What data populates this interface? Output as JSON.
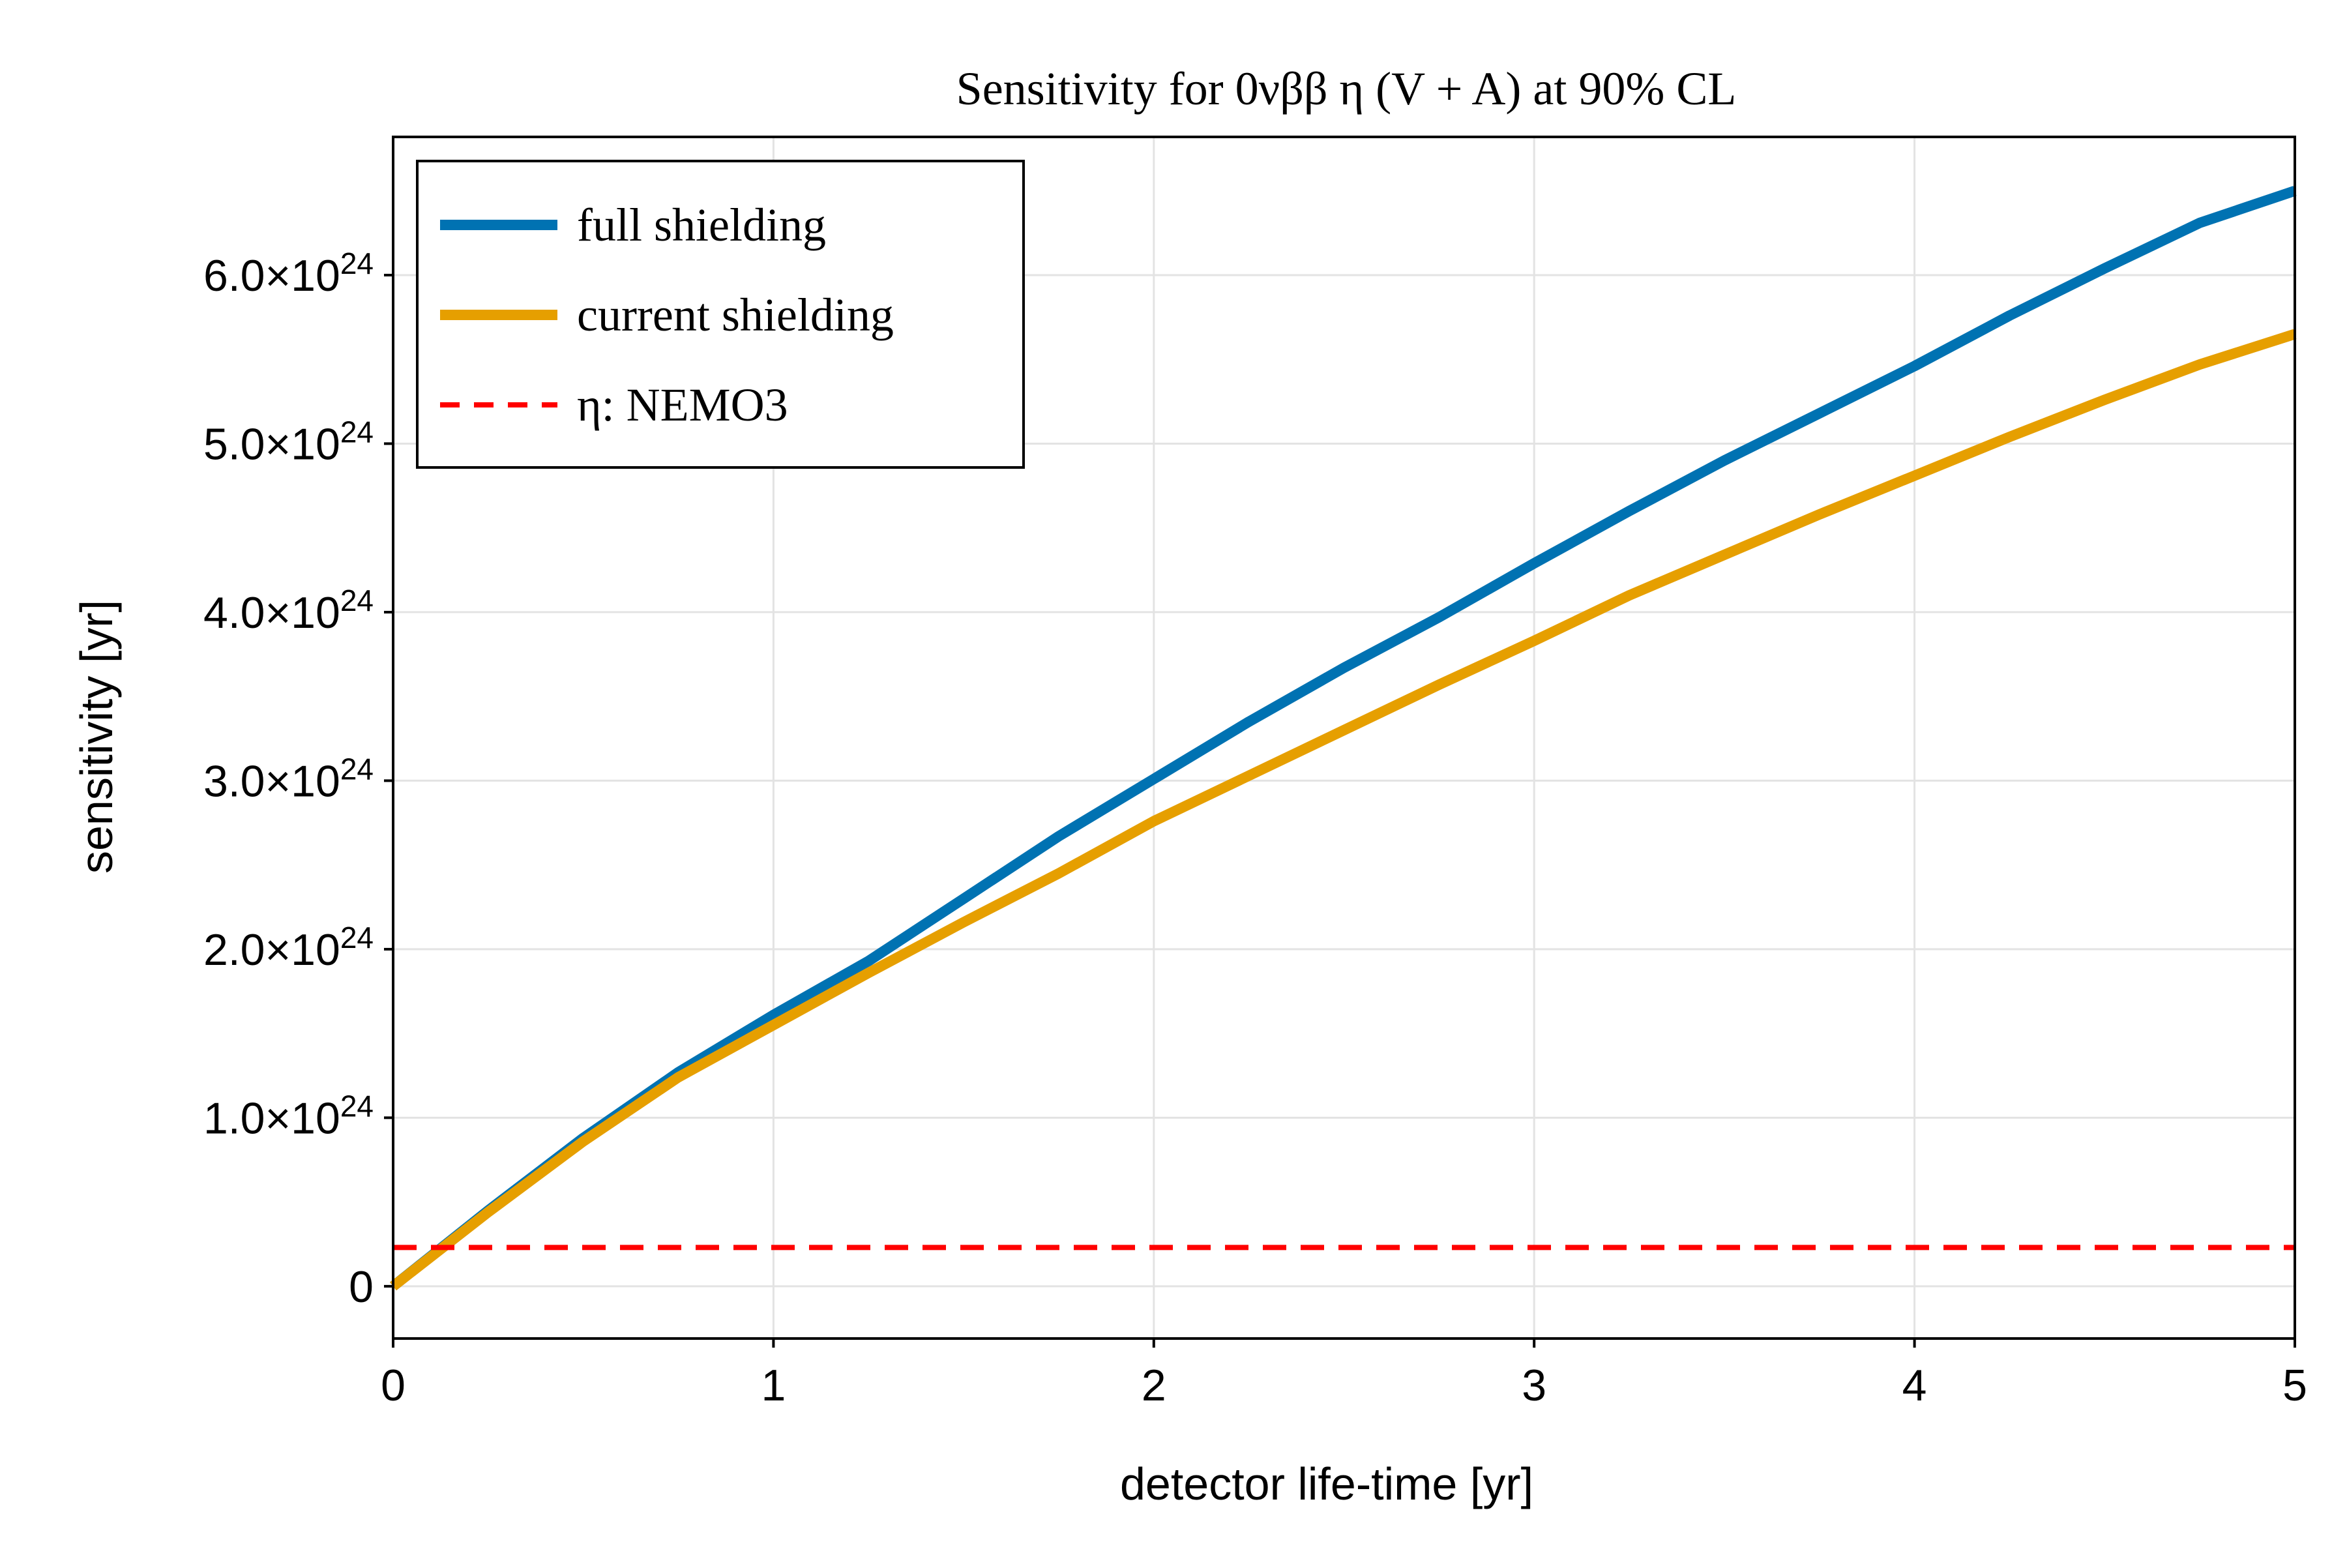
{
  "chart_data": {
    "type": "line",
    "title": "Sensitivity for 0νββ η (V + A) at 90% CL",
    "xlabel": "detector life-time [yr]",
    "ylabel": "sensitivity [yr]",
    "xlim": [
      0,
      5
    ],
    "ylim": [
      -3.1e+23,
      6.82e+24
    ],
    "x_ticks": [
      0,
      1,
      2,
      3,
      4,
      5
    ],
    "x_tick_labels": [
      "0",
      "1",
      "2",
      "3",
      "4",
      "5"
    ],
    "y_ticks": [
      0,
      1e+24,
      2e+24,
      3e+24,
      4e+24,
      5e+24,
      6e+24
    ],
    "y_tick_labels": [
      {
        "mantissa": "0",
        "exp": ""
      },
      {
        "mantissa": "1.0×10",
        "exp": "24"
      },
      {
        "mantissa": "2.0×10",
        "exp": "24"
      },
      {
        "mantissa": "3.0×10",
        "exp": "24"
      },
      {
        "mantissa": "4.0×10",
        "exp": "24"
      },
      {
        "mantissa": "5.0×10",
        "exp": "24"
      },
      {
        "mantissa": "6.0×10",
        "exp": "24"
      }
    ],
    "grid": true,
    "legend_position": "top-left",
    "x": [
      0,
      0.25,
      0.5,
      0.75,
      1.0,
      1.25,
      1.5,
      1.75,
      2.0,
      2.25,
      2.5,
      2.75,
      3.0,
      3.25,
      3.5,
      3.75,
      4.0,
      4.25,
      4.5,
      4.75,
      5.0
    ],
    "series": [
      {
        "name": "full shielding",
        "color": "#0072b2",
        "style": "solid",
        "values": [
          0,
          4.5e+23,
          8.8e+23,
          1.27e+24,
          1.61e+24,
          1.93e+24,
          2.3e+24,
          2.67e+24,
          3.01e+24,
          3.35e+24,
          3.67e+24,
          3.97e+24,
          4.29e+24,
          4.6e+24,
          4.9e+24,
          5.18e+24,
          5.46e+24,
          5.76e+24,
          6.04e+24,
          6.31e+24,
          6.5e+24
        ]
      },
      {
        "name": "current shielding",
        "color": "#e69f00",
        "style": "solid",
        "values": [
          0,
          4.4e+23,
          8.6e+23,
          1.24e+24,
          1.55e+24,
          1.86e+24,
          2.16e+24,
          2.45e+24,
          2.76e+24,
          3.03e+24,
          3.3e+24,
          3.57e+24,
          3.83e+24,
          4.1e+24,
          4.34e+24,
          4.58e+24,
          4.81e+24,
          5.04e+24,
          5.26e+24,
          5.47e+24,
          5.65e+24
        ]
      },
      {
        "name": "η:  NEMO3",
        "color": "#ff0000",
        "style": "dashed",
        "values": [
          2.3e+23,
          2.3e+23,
          2.3e+23,
          2.3e+23,
          2.3e+23,
          2.3e+23,
          2.3e+23,
          2.3e+23,
          2.3e+23,
          2.3e+23,
          2.3e+23,
          2.3e+23,
          2.3e+23,
          2.3e+23,
          2.3e+23,
          2.3e+23,
          2.3e+23,
          2.3e+23,
          2.3e+23,
          2.3e+23,
          2.3e+23
        ]
      }
    ]
  }
}
